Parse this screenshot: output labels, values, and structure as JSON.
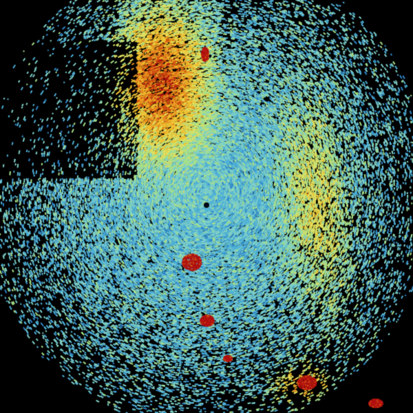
{
  "radar": {
    "background": "#000000",
    "palette": [
      "#1a5fb4",
      "#2f86c8",
      "#4fb0d8",
      "#7fd0c8",
      "#a8e08a",
      "#e0e060",
      "#f0c030",
      "#e89020",
      "#d05010",
      "#b01010"
    ],
    "site_marker_color": "#000814"
  }
}
